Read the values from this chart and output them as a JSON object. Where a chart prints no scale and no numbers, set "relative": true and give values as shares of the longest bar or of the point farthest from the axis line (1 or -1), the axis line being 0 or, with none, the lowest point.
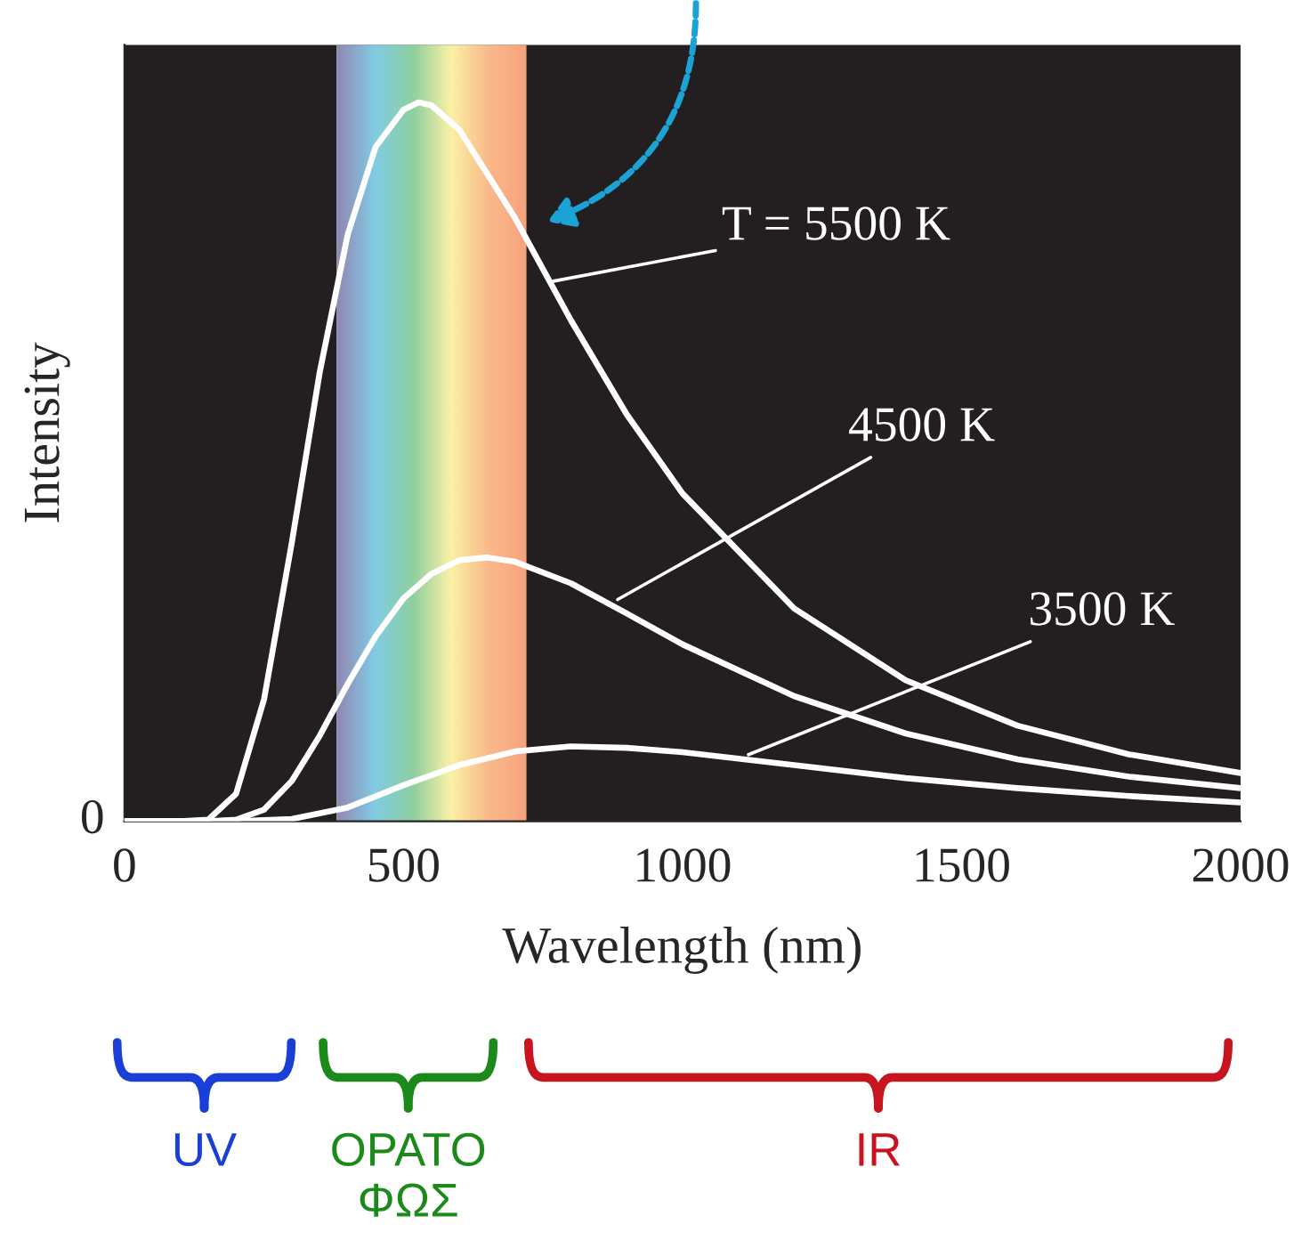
{
  "chart_data": {
    "type": "line",
    "relative": true,
    "xlabel": "Wavelength (nm)",
    "ylabel": "Intensity",
    "xlim": [
      0,
      2000
    ],
    "xticks": [
      0,
      500,
      1000,
      1500,
      2000
    ],
    "grid": false,
    "marker": "none",
    "line_style": "solid",
    "series": [
      {
        "color": "#ffffff",
        "x": [
          0,
          100,
          150,
          200,
          250,
          300,
          350,
          400,
          450,
          500,
          527,
          550,
          600,
          700,
          800,
          900,
          1000,
          1200,
          1400,
          1600,
          1800,
          2000
        ],
        "values": [
          0,
          0,
          0.002,
          0.038,
          0.169,
          0.388,
          0.625,
          0.816,
          0.938,
          0.99,
          1,
          0.996,
          0.962,
          0.839,
          0.697,
          0.566,
          0.456,
          0.296,
          0.196,
          0.133,
          0.093,
          0.067
        ]
      },
      {
        "color": "#ffffff",
        "x": [
          0,
          150,
          200,
          250,
          300,
          350,
          400,
          450,
          500,
          550,
          600,
          650,
          700,
          800,
          900,
          1000,
          1200,
          1400,
          1600,
          1800,
          2000
        ],
        "values": [
          0,
          0,
          0.002,
          0.016,
          0.056,
          0.119,
          0.191,
          0.257,
          0.31,
          0.344,
          0.363,
          0.367,
          0.361,
          0.331,
          0.289,
          0.246,
          0.174,
          0.122,
          0.086,
          0.062,
          0.046
        ]
      },
      {
        "color": "#ffffff",
        "x": [
          0,
          200,
          300,
          400,
          500,
          600,
          700,
          800,
          900,
          1000,
          1200,
          1400,
          1600,
          1800,
          2000
        ],
        "values": [
          0,
          0,
          0.003,
          0.019,
          0.05,
          0.078,
          0.097,
          0.104,
          0.102,
          0.096,
          0.078,
          0.06,
          0.046,
          0.035,
          0.026
        ]
      }
    ],
    "annotations": [
      {
        "text": "T = 5500 K",
        "x": 760,
        "y": 0.75
      },
      {
        "text": "4500 K",
        "x": 876,
        "y": 0.305
      },
      {
        "text": "3500 K",
        "x": 1110,
        "y": 0.09
      },
      {
        "text": "0",
        "x": 0,
        "y": 0
      },
      "UV",
      "ΟΡΑΤΟ\nΦΩΣ",
      "IR"
    ],
    "bands": [
      {
        "axis": "x",
        "from": 380,
        "to": 720,
        "color": "#c9d7a0"
      }
    ]
  }
}
